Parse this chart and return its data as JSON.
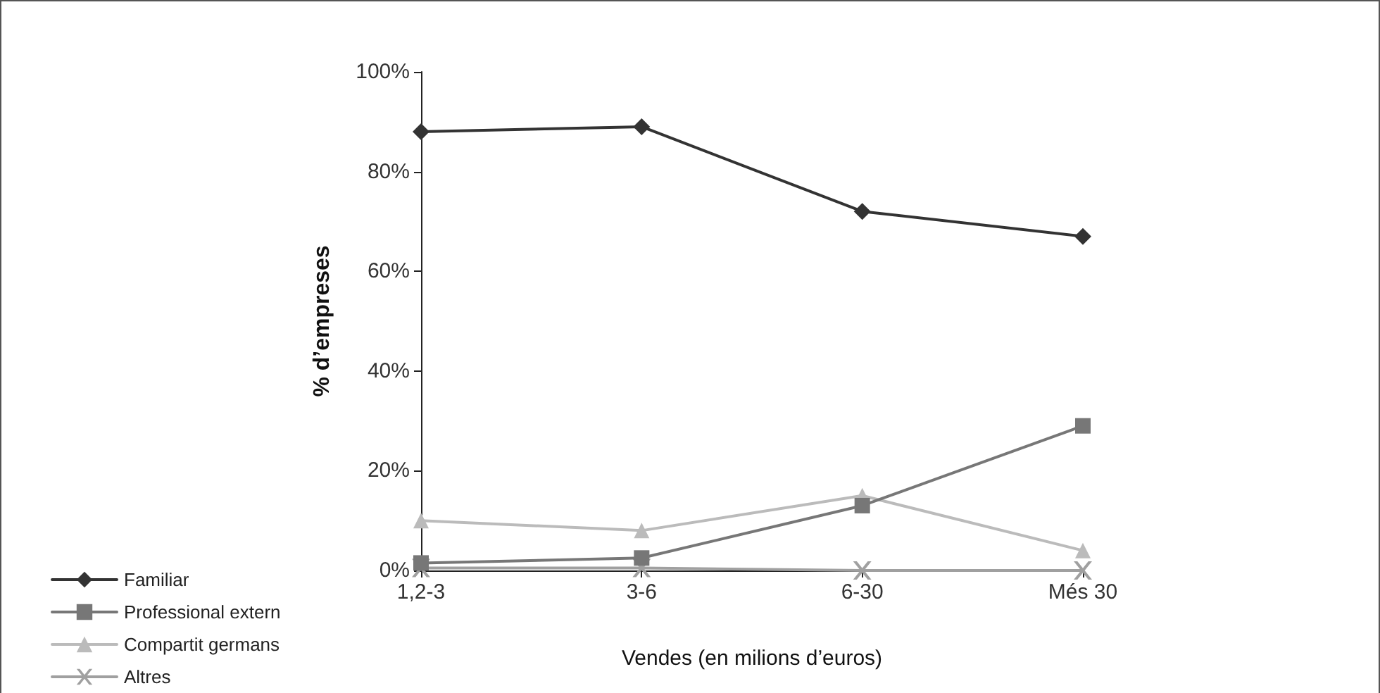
{
  "chart_data": {
    "type": "line",
    "xlabel": "Vendes (en milions d’euros)",
    "ylabel": "% d’empreses",
    "categories": [
      "1,2-3",
      "3-6",
      "6-30",
      "Més 30"
    ],
    "series": [
      {
        "name": "Familiar",
        "color": "#333333",
        "marker": "diamond",
        "values": [
          88,
          89,
          72,
          67
        ]
      },
      {
        "name": "Professional extern",
        "color": "#777777",
        "marker": "square",
        "values": [
          1.5,
          2.5,
          13,
          29
        ]
      },
      {
        "name": "Compartit germans",
        "color": "#bbbbbb",
        "marker": "triangle",
        "values": [
          10,
          8,
          15,
          4
        ]
      },
      {
        "name": "Altres",
        "color": "#a0a0a0",
        "marker": "cross",
        "values": [
          0.5,
          0.5,
          0,
          0
        ]
      }
    ],
    "ylim": [
      0,
      100
    ],
    "yticks": [
      {
        "value": 0,
        "label": "0%"
      },
      {
        "value": 20,
        "label": "20%"
      },
      {
        "value": 40,
        "label": "40%"
      },
      {
        "value": 60,
        "label": "60%"
      },
      {
        "value": 80,
        "label": "80%"
      },
      {
        "value": 100,
        "label": "100%"
      }
    ],
    "grid": false,
    "legend": "left"
  }
}
